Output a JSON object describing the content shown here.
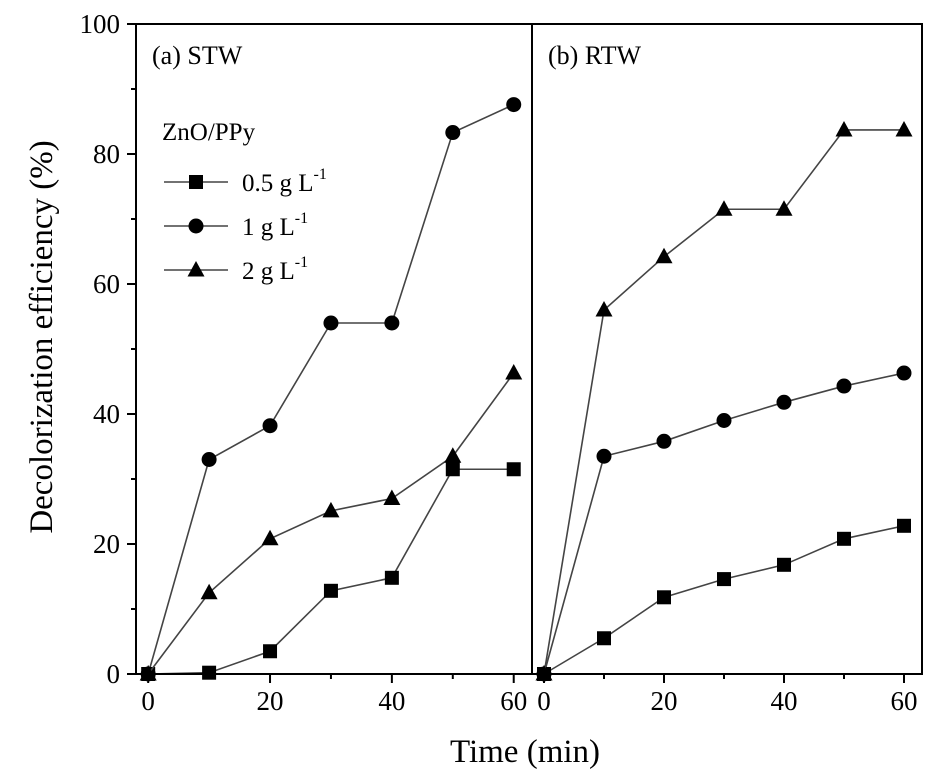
{
  "chart_data": {
    "type": "line",
    "xlabel": "Time (min)",
    "ylabel": "Decolorization efficiency (%)",
    "ylim": [
      0,
      100
    ],
    "yticks": [
      0,
      20,
      40,
      60,
      80,
      100
    ],
    "grid": false,
    "legend": {
      "title": "ZnO/PPy",
      "placement": "upper-left of panel (a)",
      "entries": [
        {
          "label": "0.5 g L",
          "sup": "-1",
          "marker": "square"
        },
        {
          "label": "1 g L",
          "sup": "-1",
          "marker": "circle"
        },
        {
          "label": "2 g L",
          "sup": "-1",
          "marker": "triangle"
        }
      ]
    },
    "panels": [
      {
        "label": "(a) STW",
        "xlim": [
          -2,
          63
        ],
        "xticks": [
          0,
          20,
          40,
          60
        ],
        "x": [
          0,
          10,
          20,
          30,
          40,
          50,
          60
        ],
        "series": [
          {
            "name": "0.5 g L-1",
            "marker": "square",
            "values": [
              0,
              0.2,
              3.5,
              12.8,
              14.8,
              31.5,
              31.5
            ]
          },
          {
            "name": "1 g L-1",
            "marker": "circle",
            "values": [
              0,
              33,
              38.2,
              54,
              54,
              83.3,
              87.6
            ]
          },
          {
            "name": "2 g L-1",
            "marker": "triangle",
            "values": [
              0,
              12.5,
              20.8,
              25.1,
              27,
              33.5,
              46.3
            ]
          }
        ]
      },
      {
        "label": "(b) RTW",
        "xlim": [
          -2,
          63
        ],
        "xticks": [
          0,
          20,
          40,
          60
        ],
        "x": [
          0,
          10,
          20,
          30,
          40,
          50,
          60
        ],
        "series": [
          {
            "name": "0.5 g L-1",
            "marker": "square",
            "values": [
              0,
              5.5,
              11.8,
              14.6,
              16.8,
              20.8,
              22.8
            ]
          },
          {
            "name": "1 g L-1",
            "marker": "circle",
            "values": [
              0,
              33.5,
              35.8,
              39,
              41.8,
              44.3,
              46.3
            ]
          },
          {
            "name": "2 g L-1",
            "marker": "triangle",
            "values": [
              0,
              56,
              64.2,
              71.5,
              71.5,
              83.7,
              83.7
            ]
          }
        ]
      }
    ]
  },
  "colors": {
    "line": "#444444",
    "marker": "#000000",
    "axis": "#000000",
    "background": "#ffffff"
  }
}
